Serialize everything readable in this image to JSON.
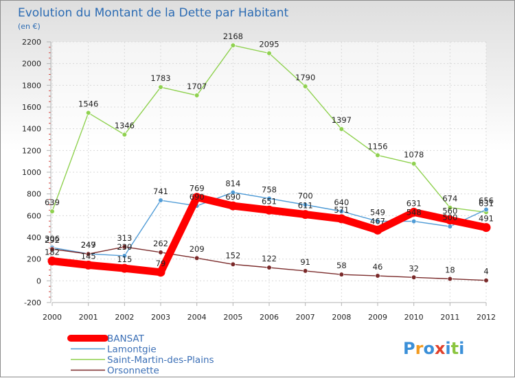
{
  "chart_data": {
    "type": "line",
    "title": "Evolution du Montant de la Dette par Habitant",
    "subtitle": "(en €)",
    "xlabel": "",
    "ylabel": "",
    "categories": [
      "2000",
      "2001",
      "2002",
      "2003",
      "2004",
      "2005",
      "2006",
      "2007",
      "2008",
      "2009",
      "2010",
      "2011",
      "2012"
    ],
    "ylim": [
      -200,
      2200
    ],
    "yticks": [
      -200,
      0,
      200,
      400,
      600,
      800,
      1000,
      1200,
      1400,
      1600,
      1800,
      2000,
      2200
    ],
    "grid": true,
    "legend_position": "bottom-left",
    "series": [
      {
        "name": "BANSAT",
        "color": "#ff0000",
        "values": [
          182,
          145,
          115,
          79,
          769,
          690,
          651,
          611,
          571,
          467,
          631,
          560,
          491
        ]
      },
      {
        "name": "Lamontgie",
        "color": "#4f9bd6",
        "values": [
          306,
          249,
          230,
          741,
          690,
          814,
          758,
          700,
          640,
          549,
          548,
          500,
          656
        ]
      },
      {
        "name": "Saint-Martin-des-Plains",
        "color": "#8fd14f",
        "values": [
          639,
          1546,
          1346,
          1783,
          1707,
          2168,
          2095,
          1790,
          1397,
          1156,
          1078,
          674,
          631
        ]
      },
      {
        "name": "Orsonnette",
        "color": "#7a2a2a",
        "values": [
          292,
          247,
          313,
          262,
          209,
          152,
          122,
          91,
          58,
          46,
          32,
          18,
          4
        ]
      }
    ]
  },
  "legend": {
    "items": [
      "BANSAT",
      "Lamontgie",
      "Saint-Martin-des-Plains",
      "Orsonnette"
    ]
  },
  "logo": {
    "text": "Proxiti",
    "colors": [
      "#3a8fd8",
      "#f29a1f",
      "#3a8fd8",
      "#e0402a",
      "#3a8fd8",
      "#8bc53f",
      "#3a8fd8"
    ]
  }
}
